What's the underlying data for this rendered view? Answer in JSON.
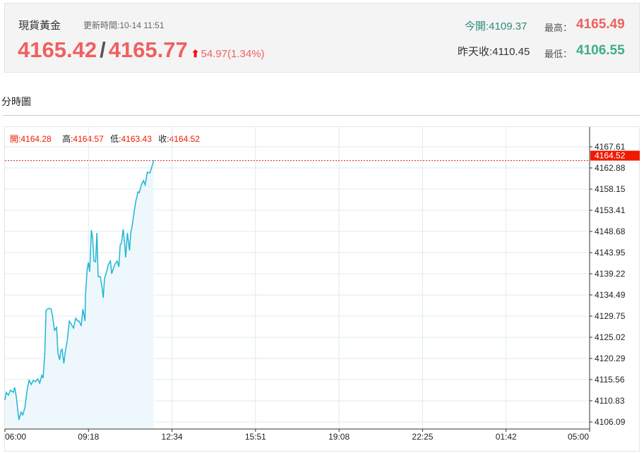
{
  "header": {
    "name": "現貨黃金",
    "update_label": "更新時間:10-14 11:51",
    "bid": "4165.42",
    "sep": "/",
    "ask": "4165.77",
    "change": "54.97(1.34%)",
    "open_label": "今開:",
    "open": "4109.37",
    "prev_label": "昨天收:",
    "prev": "4110.45",
    "high_label": "最高：",
    "high": "4165.49",
    "low_label": "最低：",
    "low": "4106.55"
  },
  "section_title": "分時圖",
  "ohlc": {
    "open_label": "開:",
    "open": "4164.28",
    "high_label": "高:",
    "high": "4164.57",
    "low_label": "低:",
    "low": "4163.43",
    "close_label": "收:",
    "close": "4164.52"
  },
  "colors": {
    "up": "#f06060",
    "down": "#3fae86",
    "line": "#1fb5d6",
    "last_tag": "#f01a00"
  },
  "chart_data": {
    "type": "area",
    "ylim": [
      4106.09,
      4167.61
    ],
    "y_ticks": [
      "4167.61",
      "4162.88",
      "4158.15",
      "4153.41",
      "4148.68",
      "4143.95",
      "4139.22",
      "4134.49",
      "4129.75",
      "4125.02",
      "4120.29",
      "4115.56",
      "4110.83",
      "4106.09"
    ],
    "x_ticks": [
      "06:00",
      "09:18",
      "12:34",
      "15:51",
      "19:08",
      "22:25",
      "01:42",
      "05:00"
    ],
    "xlim": [
      "06:00",
      "05:00 (+1d)"
    ],
    "last_price": "4164.52",
    "grid": true,
    "x": [
      "06:00",
      "06:03",
      "06:08",
      "06:13",
      "06:20",
      "06:23",
      "06:27",
      "06:30",
      "06:33",
      "06:38",
      "06:42",
      "06:47",
      "06:52",
      "06:57",
      "07:02",
      "07:07",
      "07:12",
      "07:17",
      "07:22",
      "07:27",
      "07:30",
      "07:34",
      "07:37",
      "07:40",
      "07:45",
      "07:49",
      "07:52",
      "07:57",
      "08:02",
      "08:05",
      "08:09",
      "08:12",
      "08:15",
      "08:19",
      "08:22",
      "08:27",
      "08:32",
      "08:37",
      "08:42",
      "08:47",
      "08:52",
      "08:55",
      "09:00",
      "09:04",
      "09:09",
      "09:10",
      "09:14",
      "09:17",
      "09:20",
      "09:24",
      "09:27",
      "09:30",
      "09:34",
      "09:37",
      "09:40",
      "09:45",
      "09:49",
      "09:52",
      "09:55",
      "09:59",
      "10:04",
      "10:09",
      "10:12",
      "10:15",
      "10:20",
      "10:25",
      "10:29",
      "10:32",
      "10:35",
      "10:39",
      "10:42",
      "10:45",
      "10:49",
      "10:54",
      "10:57",
      "11:00",
      "11:05",
      "11:09",
      "11:14",
      "11:17",
      "11:22",
      "11:27",
      "11:31",
      "11:36",
      "11:42",
      "11:46",
      "11:51"
    ],
    "y": [
      4110.98,
      4112.72,
      4112.08,
      4113.19,
      4112.72,
      4113.82,
      4111.61,
      4108.93,
      4106.56,
      4108.3,
      4107.67,
      4109.24,
      4113.03,
      4115.4,
      4114.45,
      4115.4,
      4115.08,
      4115.71,
      4114.77,
      4116.5,
      4115.87,
      4121.23,
      4131.01,
      4131.33,
      4131.49,
      4131.33,
      4129.91,
      4126.6,
      4127.23,
      4121.55,
      4119.97,
      4122.02,
      4122.34,
      4119.18,
      4121.55,
      4124.23,
      4128.65,
      4127.86,
      4127.07,
      4129.28,
      4128.65,
      4128.65,
      4127.54,
      4131.33,
      4128.65,
      4134.17,
      4140.16,
      4141.74,
      4139.69,
      4149.0,
      4147.1,
      4142.05,
      4141.89,
      4148.36,
      4138.58,
      4138.58,
      4136.22,
      4133.85,
      4138.11,
      4139.37,
      4141.27,
      4142.05,
      4139.22,
      4140.16,
      4141.42,
      4142.05,
      4140.79,
      4145.68,
      4146.0,
      4149.15,
      4146.63,
      4142.84,
      4148.36,
      4144.42,
      4148.36,
      4149.78,
      4153.1,
      4155.46,
      4157.51,
      4157.35,
      4159.09,
      4160.04,
      4159.09,
      4161.93,
      4161.77,
      4162.88,
      4164.52
    ]
  }
}
